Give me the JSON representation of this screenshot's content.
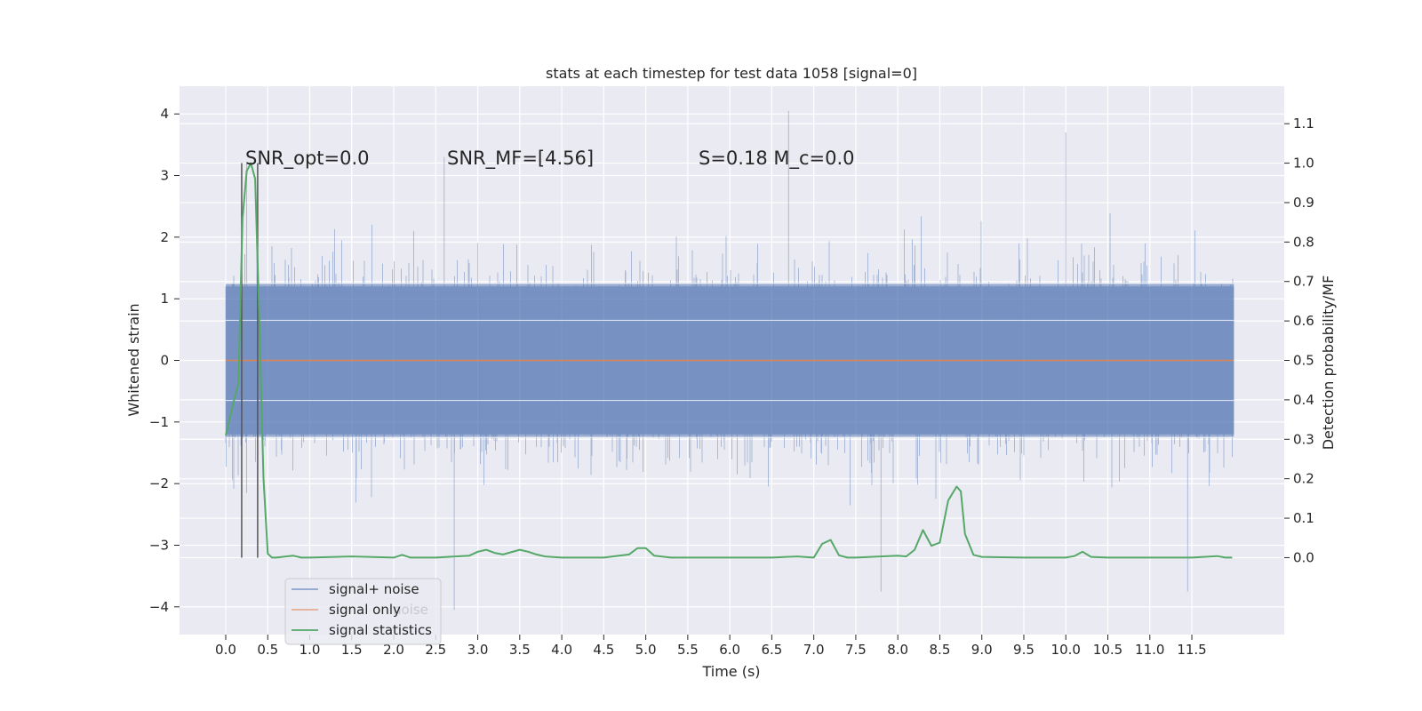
{
  "chart_data": {
    "type": "line",
    "title": "stats at each timestep for test data 1058 [signal=0]",
    "xlabel": "Time (s)",
    "ylabel_left": "Whitened strain",
    "ylabel_right": "Detection probability/MF",
    "xlim": [
      -0.55,
      12.6
    ],
    "ylim_left": [
      -4.45,
      4.45
    ],
    "ylim_right": [
      -0.195,
      1.195
    ],
    "xticks": [
      0,
      0.5,
      1,
      1.5,
      2,
      2.5,
      3,
      3.5,
      4,
      4.5,
      5,
      5.5,
      6,
      6.5,
      7,
      7.5,
      8,
      8.5,
      9,
      9.5,
      10,
      10.5,
      11,
      11.5
    ],
    "xtick_labels": [
      "0.0",
      "0.5",
      "1.0",
      "1.5",
      "2.0",
      "2.5",
      "3.0",
      "3.5",
      "4.0",
      "4.5",
      "5.0",
      "5.5",
      "6.0",
      "6.5",
      "7.0",
      "7.5",
      "8.0",
      "8.5",
      "9.0",
      "9.5",
      "10.0",
      "10.5",
      "11.0",
      "11.5"
    ],
    "yticks_left": [
      -4,
      -3,
      -2,
      -1,
      0,
      1,
      2,
      3,
      4
    ],
    "ytick_labels_left": [
      "−4",
      "−3",
      "−2",
      "−1",
      "0",
      "1",
      "2",
      "3",
      "4"
    ],
    "yticks_right": [
      0,
      0.1,
      0.2,
      0.3,
      0.4,
      0.5,
      0.6,
      0.7,
      0.8,
      0.9,
      1.0,
      1.1
    ],
    "ytick_labels_right": [
      "0.0",
      "0.1",
      "0.2",
      "0.3",
      "0.4",
      "0.5",
      "0.6",
      "0.7",
      "0.8",
      "0.9",
      "1.0",
      "1.1"
    ],
    "grid": true,
    "legend_position": "lower-left",
    "series": [
      {
        "name": "signal+ noise",
        "axis": "left",
        "color": "#4c72b0",
        "x_range": [
          0,
          12
        ],
        "envelope_peak_examples": [
          {
            "x": 0.25,
            "y": 3.2
          },
          {
            "x": 2.6,
            "y": 3.3
          },
          {
            "x": 6.7,
            "y": 4.05
          },
          {
            "x": 10.0,
            "y": 3.7
          },
          {
            "x": 2.72,
            "y": -4.05
          },
          {
            "x": 7.8,
            "y": -3.75
          },
          {
            "x": 11.45,
            "y": -3.75
          }
        ]
      },
      {
        "name": "signal only",
        "axis": "left",
        "color": "#dd8452",
        "x": [
          0,
          12
        ],
        "y": [
          0,
          0
        ]
      },
      {
        "name": "signal statistics",
        "axis": "right",
        "color": "#55a868",
        "x": [
          0.0,
          0.1,
          0.15,
          0.2,
          0.25,
          0.3,
          0.35,
          0.4,
          0.45,
          0.5,
          0.55,
          0.6,
          0.8,
          0.9,
          1.0,
          1.5,
          2.0,
          2.1,
          2.2,
          2.5,
          2.9,
          3.0,
          3.1,
          3.2,
          3.3,
          3.5,
          3.6,
          3.7,
          3.8,
          4.0,
          4.5,
          4.8,
          4.9,
          5.0,
          5.1,
          5.3,
          5.5,
          6.0,
          6.5,
          6.8,
          7.0,
          7.1,
          7.2,
          7.3,
          7.4,
          7.5,
          8.0,
          8.1,
          8.2,
          8.3,
          8.4,
          8.5,
          8.6,
          8.7,
          8.75,
          8.8,
          8.9,
          9.0,
          9.5,
          10.0,
          10.1,
          10.2,
          10.3,
          10.5,
          11.0,
          11.5,
          11.8,
          11.9,
          11.98
        ],
        "y": [
          0.31,
          0.4,
          0.44,
          0.86,
          0.98,
          1.0,
          0.96,
          0.6,
          0.2,
          0.01,
          0.0,
          0.0,
          0.005,
          0.0,
          0.0,
          0.003,
          0.0,
          0.007,
          0.0,
          0.0,
          0.005,
          0.015,
          0.02,
          0.012,
          0.008,
          0.02,
          0.015,
          0.008,
          0.003,
          0.0,
          0.0,
          0.008,
          0.024,
          0.024,
          0.005,
          0.0,
          0.0,
          0.0,
          0.0,
          0.003,
          0.0,
          0.035,
          0.045,
          0.006,
          0.0,
          0.0,
          0.005,
          0.003,
          0.02,
          0.07,
          0.03,
          0.038,
          0.145,
          0.18,
          0.168,
          0.06,
          0.007,
          0.002,
          0.0,
          0.0,
          0.004,
          0.015,
          0.002,
          0.0,
          0.0,
          0.0,
          0.004,
          0.0,
          0.0
        ]
      }
    ],
    "vertical_markers": [
      {
        "x": 0.19,
        "y_from": -0.0,
        "y_to": 1.0,
        "color": "#555555"
      },
      {
        "x": 0.38,
        "y_from": -0.0,
        "y_to": 1.0,
        "color": "#555555"
      }
    ],
    "annotations": [
      {
        "text": "SNR_opt=0.0"
      },
      {
        "text": "SNR_MF=[4.56]"
      },
      {
        "text": "S=0.18   M_c=0.0"
      }
    ],
    "legend": [
      {
        "label": "signal+ noise",
        "color": "#4c72b0"
      },
      {
        "label": "signal only",
        "color": "#dd8452"
      },
      {
        "label": "signal statistics",
        "color": "#55a868"
      }
    ],
    "legend_ghost_text": "noise",
    "colors": {
      "plot_background": "#eaeaf2",
      "grid": "#ffffff",
      "text": "#262626",
      "marker": "#555555"
    }
  }
}
